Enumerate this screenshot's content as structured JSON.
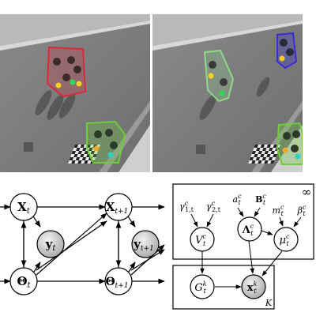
{
  "photos": [
    {
      "id": "left",
      "groups": [
        {
          "color": "#d92a3a",
          "people": 4,
          "dots": [
            "#f5d020",
            "#2ed85e",
            "#f5d020"
          ]
        },
        {
          "color": "#6ecb3a",
          "people": 3,
          "dots": [
            "#f5a623",
            "#30d0c0"
          ]
        }
      ]
    },
    {
      "id": "right",
      "groups": [
        {
          "color": "#8fd88a",
          "people": 2,
          "dots": [
            "#f5d020",
            "#2ed85e"
          ]
        },
        {
          "color": "#3a2ad8",
          "people": 2,
          "dots": [
            "#f5d020"
          ]
        },
        {
          "color": "#6ecb3a",
          "people": 3,
          "dots": [
            "#f5a623",
            "#30d0c0"
          ]
        }
      ]
    }
  ],
  "left_graph": {
    "nodes": {
      "x_t": {
        "base": "X",
        "sub": "t"
      },
      "x_t1": {
        "base": "X",
        "sub": "t+1"
      },
      "y_t": {
        "base": "y",
        "sub": "t"
      },
      "y_t1": {
        "base": "y",
        "sub": "t+1"
      },
      "theta_t": {
        "base": "Θ",
        "sub": "t"
      },
      "theta_t1": {
        "base": "Θ",
        "sub": "t+1"
      }
    }
  },
  "right_graph": {
    "plate_outer_label": "∞",
    "plate_inner_label": "K",
    "params": {
      "gamma1": {
        "base": "γ",
        "sup": "c",
        "sub": "1,t"
      },
      "gamma2": {
        "base": "γ",
        "sup": "c",
        "sub": "2,t"
      },
      "a": {
        "base": "a",
        "sup": "c",
        "sub": "t"
      },
      "B": {
        "base": "B",
        "sup": "c",
        "sub": "t"
      },
      "m": {
        "base": "m",
        "sup": "c",
        "sub": "t"
      },
      "beta": {
        "base": "β",
        "sup": "c",
        "sub": "t"
      }
    },
    "nodes": {
      "V": {
        "base": "V",
        "sup": "c",
        "sub": "t"
      },
      "Lambda": {
        "base": "Λ",
        "sup": "c",
        "sub": "t"
      },
      "mu": {
        "base": "μ",
        "sup": "c",
        "sub": "t"
      },
      "G": {
        "base": "G",
        "sup": "k",
        "sub": "t"
      },
      "x": {
        "base": "x",
        "sup": "k",
        "sub": "t"
      }
    }
  }
}
